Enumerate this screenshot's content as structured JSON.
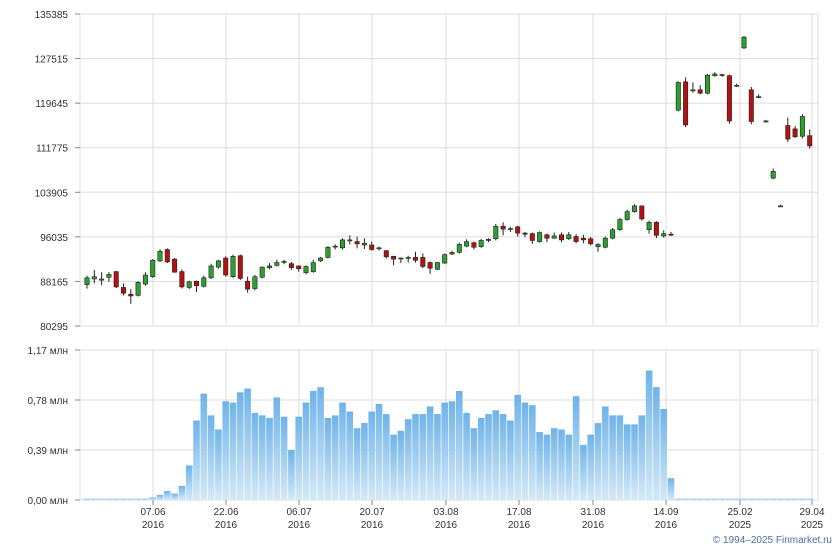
{
  "chart_data": [
    {
      "type": "candlestick",
      "title": "",
      "ylim": [
        80295,
        135385
      ],
      "y_ticks": [
        "135385",
        "127515",
        "119645",
        "111775",
        "103905",
        "96035",
        "88165",
        "80295"
      ],
      "grid": true,
      "colors": {
        "up": "#2e9e2e",
        "down": "#b31212",
        "wick": "#222222",
        "grid": "#dddddd"
      },
      "candles": [
        [
          87600,
          89200,
          86900,
          88800
        ],
        [
          88600,
          90200,
          87800,
          89000
        ],
        [
          88400,
          89800,
          87500,
          88600
        ],
        [
          88900,
          89800,
          88100,
          89400
        ],
        [
          89900,
          90000,
          87000,
          87200
        ],
        [
          87100,
          87800,
          85700,
          86100
        ],
        [
          85900,
          86800,
          84200,
          85600
        ],
        [
          85700,
          88200,
          85500,
          88000
        ],
        [
          87700,
          89800,
          87400,
          89300
        ],
        [
          89000,
          92100,
          88800,
          91900
        ],
        [
          91800,
          93800,
          91600,
          93500
        ],
        [
          93800,
          94000,
          91400,
          91600
        ],
        [
          92100,
          92300,
          89700,
          89800
        ],
        [
          89900,
          90300,
          86900,
          87200
        ],
        [
          87100,
          88300,
          86800,
          88100
        ],
        [
          88200,
          88300,
          86300,
          87400
        ],
        [
          87300,
          89200,
          87100,
          88800
        ],
        [
          88800,
          91300,
          88600,
          90900
        ],
        [
          90700,
          92000,
          90400,
          91800
        ],
        [
          92300,
          92600,
          89000,
          89300
        ],
        [
          89000,
          92900,
          88800,
          92600
        ],
        [
          92700,
          92900,
          88400,
          88700
        ],
        [
          88200,
          89000,
          86200,
          86800
        ],
        [
          86900,
          89300,
          86600,
          89000
        ],
        [
          88900,
          90800,
          88700,
          90700
        ],
        [
          90600,
          91400,
          90300,
          90900
        ],
        [
          91000,
          92000,
          90800,
          91500
        ],
        [
          91700,
          92000,
          91200,
          91700
        ],
        [
          91300,
          91600,
          90200,
          90600
        ],
        [
          90900,
          91000,
          89900,
          90400
        ],
        [
          89700,
          91000,
          89400,
          90800
        ],
        [
          89900,
          92000,
          89700,
          91500
        ],
        [
          91800,
          92500,
          91600,
          92300
        ],
        [
          92400,
          94400,
          92200,
          94200
        ],
        [
          94300,
          94700,
          93800,
          94400
        ],
        [
          94100,
          95800,
          93800,
          95500
        ],
        [
          95400,
          96300,
          94700,
          95500
        ],
        [
          95200,
          96100,
          94000,
          94800
        ],
        [
          94600,
          95800,
          93900,
          94900
        ],
        [
          94600,
          95200,
          93600,
          93800
        ],
        [
          94000,
          94300,
          93600,
          94100
        ],
        [
          93600,
          93700,
          92200,
          92500
        ],
        [
          92600,
          92700,
          91000,
          92100
        ],
        [
          92200,
          92400,
          91400,
          92300
        ],
        [
          92300,
          92700,
          91500,
          92400
        ],
        [
          92400,
          93400,
          91500,
          91900
        ],
        [
          92400,
          93100,
          90500,
          90800
        ],
        [
          91500,
          91700,
          89500,
          90500
        ],
        [
          90300,
          91600,
          90200,
          91500
        ],
        [
          91400,
          93100,
          91300,
          92900
        ],
        [
          93000,
          93600,
          92800,
          93300
        ],
        [
          93300,
          95000,
          93100,
          94700
        ],
        [
          94400,
          95600,
          94200,
          95200
        ],
        [
          95000,
          95200,
          93800,
          94200
        ],
        [
          94300,
          95700,
          94100,
          95400
        ],
        [
          95400,
          95800,
          95100,
          95600
        ],
        [
          95700,
          98300,
          95400,
          97900
        ],
        [
          97900,
          98600,
          96300,
          97400
        ],
        [
          97400,
          97800,
          96900,
          97500
        ],
        [
          97800,
          98000,
          96100,
          96700
        ],
        [
          96700,
          96900,
          96000,
          96500
        ],
        [
          96600,
          96800,
          94800,
          95400
        ],
        [
          95200,
          97000,
          95000,
          96800
        ],
        [
          96400,
          96600,
          95100,
          95800
        ],
        [
          95800,
          96800,
          95700,
          96200
        ],
        [
          96400,
          96800,
          95100,
          95500
        ],
        [
          95700,
          96900,
          95500,
          96400
        ],
        [
          96100,
          96500,
          94900,
          95200
        ],
        [
          95800,
          96400,
          94900,
          95500
        ],
        [
          95700,
          96000,
          94500,
          94800
        ],
        [
          94300,
          94900,
          93400,
          94700
        ],
        [
          94200,
          96100,
          94000,
          95800
        ],
        [
          95800,
          97600,
          95600,
          97300
        ],
        [
          97300,
          99400,
          97100,
          99100
        ],
        [
          99100,
          100800,
          98900,
          100500
        ],
        [
          100500,
          101800,
          100300,
          101500
        ],
        [
          101500,
          101600,
          98900,
          99200
        ],
        [
          97300,
          98900,
          96600,
          98600
        ],
        [
          98600,
          98800,
          95800,
          96300
        ],
        [
          96200,
          97200,
          95900,
          96600
        ],
        [
          96500,
          96900,
          96200,
          96400
        ],
        [
          118400,
          123500,
          118200,
          123300
        ],
        [
          123400,
          124200,
          115400,
          115800
        ],
        [
          121800,
          123300,
          121500,
          122000
        ],
        [
          122000,
          122800,
          121200,
          121400
        ],
        [
          121400,
          124800,
          121200,
          124600
        ],
        [
          124500,
          125100,
          124300,
          124800
        ],
        [
          124700,
          124800,
          124300,
          124600
        ],
        [
          124500,
          124700,
          116000,
          116500
        ],
        [
          122800,
          123100,
          122500,
          122800
        ],
        [
          129400,
          131500,
          129200,
          131300
        ],
        [
          122000,
          122500,
          115900,
          116400
        ],
        [
          120800,
          121200,
          120500,
          120800
        ],
        [
          116500,
          116700,
          116200,
          116500
        ],
        [
          106400,
          108100,
          106200,
          107600
        ],
        [
          101500,
          101700,
          101300,
          101500
        ],
        [
          115700,
          117100,
          112800,
          113300
        ],
        [
          115100,
          115600,
          113500,
          113700
        ],
        [
          113800,
          117700,
          113400,
          117300
        ],
        [
          113900,
          115000,
          111600,
          112100
        ]
      ]
    },
    {
      "type": "bar",
      "title": "",
      "ylim": [
        0,
        1.17
      ],
      "y_ticks": [
        "1,17 млн",
        "0,78 млн",
        "0,39 млн",
        "0,00 млн"
      ],
      "x_tick_labels": [
        {
          "label": "07.06",
          "sub": "2016"
        },
        {
          "label": "22.06",
          "sub": "2016"
        },
        {
          "label": "06.07",
          "sub": "2016"
        },
        {
          "label": "20.07",
          "sub": "2016"
        },
        {
          "label": "03.08",
          "sub": "2016"
        },
        {
          "label": "17.08",
          "sub": "2016"
        },
        {
          "label": "31.08",
          "sub": "2016"
        },
        {
          "label": "14.09",
          "sub": "2016"
        },
        {
          "label": "25.02",
          "sub": "2025"
        },
        {
          "label": "29.04",
          "sub": "2025"
        }
      ],
      "grid": true,
      "colors": {
        "bar_top": "#6fb3ea",
        "bar_bottom": "#d4e9f8"
      },
      "values": [
        0.01,
        0.01,
        0.01,
        0.01,
        0.01,
        0.01,
        0.01,
        0.01,
        0.01,
        0.02,
        0.04,
        0.07,
        0.05,
        0.11,
        0.27,
        0.62,
        0.83,
        0.66,
        0.55,
        0.77,
        0.76,
        0.84,
        0.87,
        0.68,
        0.66,
        0.64,
        0.8,
        0.65,
        0.39,
        0.65,
        0.76,
        0.85,
        0.88,
        0.64,
        0.66,
        0.76,
        0.69,
        0.56,
        0.6,
        0.69,
        0.75,
        0.67,
        0.51,
        0.54,
        0.63,
        0.67,
        0.67,
        0.73,
        0.67,
        0.76,
        0.77,
        0.85,
        0.68,
        0.56,
        0.64,
        0.67,
        0.7,
        0.67,
        0.62,
        0.82,
        0.76,
        0.74,
        0.53,
        0.51,
        0.56,
        0.55,
        0.51,
        0.81,
        0.43,
        0.51,
        0.6,
        0.73,
        0.66,
        0.66,
        0.59,
        0.59,
        0.66,
        1.01,
        0.88,
        0.71,
        0.17,
        0.01,
        0.01,
        0.01,
        0.01,
        0.01,
        0.01,
        0.01,
        0.01,
        0.01,
        0.01,
        0.01,
        0.01,
        0.01,
        0.01,
        0.01,
        0.01,
        0.01,
        0.01,
        0.01
      ]
    }
  ],
  "footer": {
    "copyright": "© 1994–2025 Finmarket.ru"
  }
}
